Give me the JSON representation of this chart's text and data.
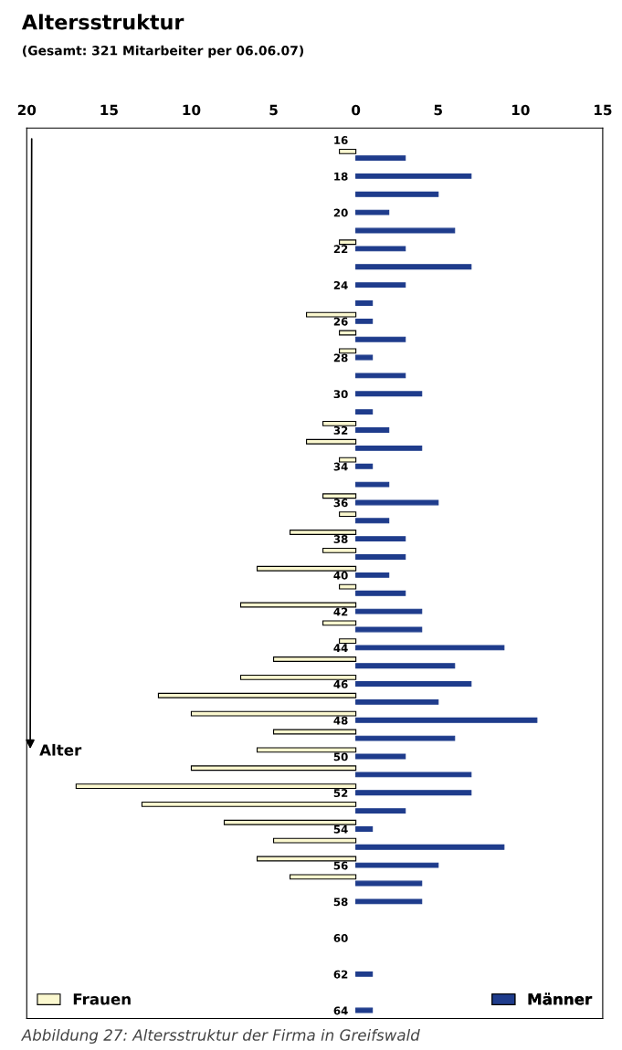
{
  "chart_data": {
    "type": "bar",
    "orientation": "horizontal",
    "title": "Altersstruktur",
    "subtitle": "(Gesamt: 321 Mitarbeiter per 06.06.07)",
    "ylabel": "Alter",
    "categories": [
      "16",
      null,
      "18",
      null,
      "20",
      null,
      "22",
      null,
      "24",
      null,
      "26",
      null,
      "28",
      null,
      "30",
      null,
      "32",
      null,
      "34",
      null,
      "36",
      null,
      "38",
      null,
      "40",
      null,
      "42",
      null,
      "44",
      null,
      "46",
      null,
      "48",
      null,
      "50",
      null,
      "52",
      null,
      "54",
      null,
      "56",
      null,
      "58",
      null,
      "60",
      null,
      "62",
      null,
      "64"
    ],
    "series": [
      {
        "name": "Frauen",
        "color": "#fbf8cf",
        "values": [
          null,
          -1,
          null,
          null,
          null,
          null,
          -1,
          null,
          null,
          null,
          -3,
          -1,
          -1,
          null,
          null,
          null,
          -2,
          -3,
          -1,
          null,
          -2,
          -1,
          -4,
          -2,
          -6,
          -1,
          -7,
          -2,
          -1,
          -5,
          -7,
          -12,
          -10,
          -5,
          -6,
          -10,
          -17,
          -13,
          -8,
          -5,
          -6,
          -4,
          null,
          null,
          null,
          null,
          null,
          null,
          null
        ]
      },
      {
        "name": "Männer",
        "color": "#1f3c8c",
        "values": [
          null,
          3,
          7,
          5,
          2,
          6,
          3,
          7,
          3,
          1,
          1,
          3,
          1,
          3,
          4,
          1,
          2,
          4,
          1,
          2,
          5,
          2,
          3,
          3,
          2,
          3,
          4,
          4,
          9,
          6,
          7,
          5,
          11,
          6,
          3,
          7,
          7,
          3,
          1,
          9,
          5,
          4,
          4,
          null,
          null,
          null,
          1,
          null,
          1
        ]
      }
    ],
    "xlim": [
      -20,
      15
    ],
    "xticks": [
      {
        "value": -20,
        "label": "20"
      },
      {
        "value": -15,
        "label": "15"
      },
      {
        "value": -10,
        "label": "10"
      },
      {
        "value": -5,
        "label": "5"
      },
      0,
      5,
      10,
      15
    ],
    "legend": "bottom",
    "annotations": [
      "Abbildung 27: Altersstruktur der Firma in Greifswald"
    ]
  }
}
